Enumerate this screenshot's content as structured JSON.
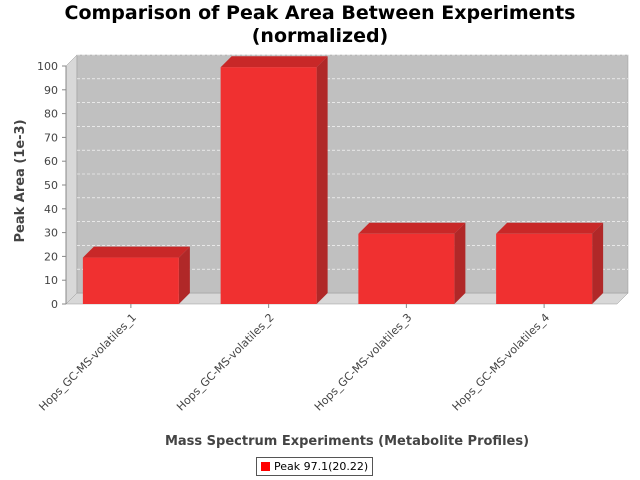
{
  "chart_data": {
    "type": "bar",
    "title_lines": [
      "Comparison of Peak Area Between Experiments",
      "(normalized)"
    ],
    "xlabel": "Mass Spectrum Experiments (Metabolite Profiles)",
    "ylabel": "Peak Area (1e-3)",
    "categories": [
      "Hops_GC-MS-volatiles_1",
      "Hops_GC-MS-volatiles_2",
      "Hops_GC-MS-volatiles_3",
      "Hops_GC-MS-volatiles_4"
    ],
    "series": [
      {
        "name": "Peak 97.1(20.22)",
        "values": [
          19.5,
          99.5,
          29.5,
          29.5
        ]
      }
    ],
    "ylim": [
      0,
      100
    ],
    "yticks": [
      0,
      10,
      20,
      30,
      40,
      50,
      60,
      70,
      80,
      90,
      100
    ],
    "grid": true,
    "legend_position": "bottom",
    "colors": {
      "bar_front": "#f03030",
      "bar_top": "#c82828",
      "bar_side": "#b02828",
      "plot_bg": "#c0c0c0",
      "wall": "#d8d8d8",
      "legend_swatch": "#ff0000"
    }
  }
}
